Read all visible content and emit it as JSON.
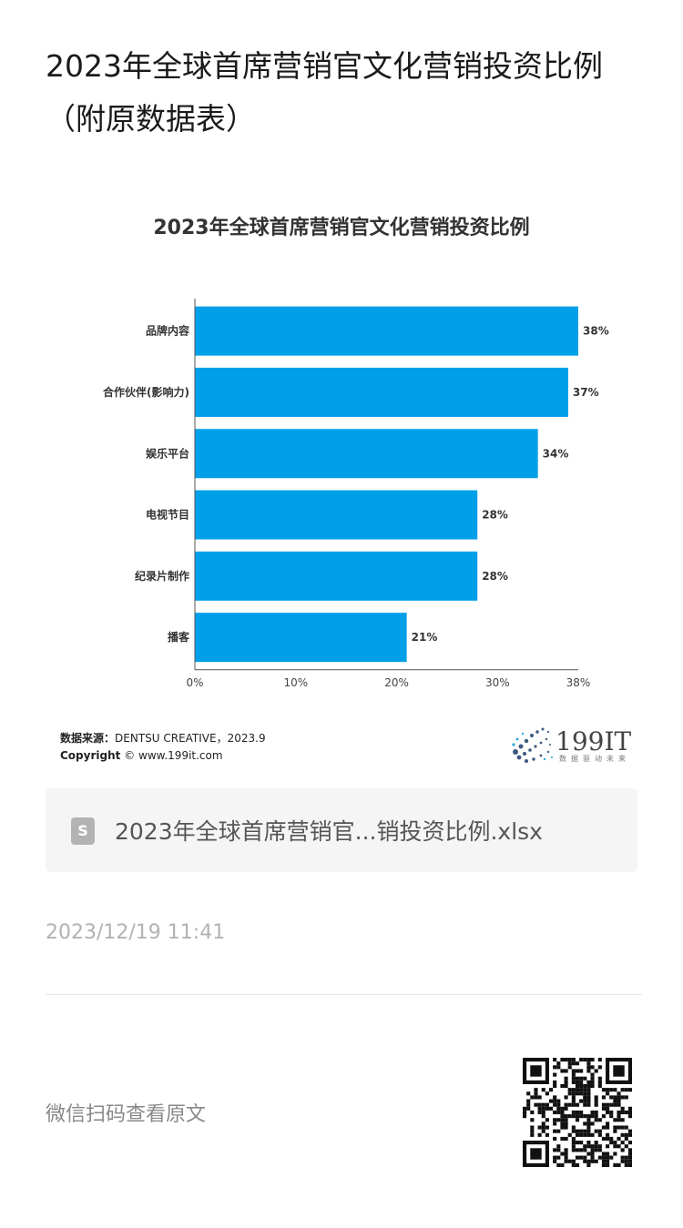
{
  "article": {
    "title": "2023年全球首席营销官文化营销投资比例（附原数据表）"
  },
  "chart_data": {
    "type": "bar",
    "orientation": "horizontal",
    "title": "2023年全球首席营销官文化营销投资比例",
    "categories": [
      "品牌内容",
      "合作伙伴(影响力)",
      "娱乐平台",
      "电视节目",
      "纪录片制作",
      "播客"
    ],
    "values": [
      38,
      37,
      34,
      28,
      28,
      21
    ],
    "value_labels": [
      "38%",
      "37%",
      "34%",
      "28%",
      "28%",
      "21%"
    ],
    "x_ticks": [
      "0%",
      "10%",
      "20%",
      "30%",
      "38%"
    ],
    "x_tick_values": [
      0,
      10,
      20,
      30,
      38
    ],
    "xlim": [
      0,
      38
    ],
    "bar_color": "#00a0e9",
    "grid": false,
    "legend": "none"
  },
  "chart_footer": {
    "source_label": "数据来源：",
    "source_value": "DENTSU CREATIVE，2023.9",
    "copyright_label": "Copyright",
    "copyright_value": "© www.199it.com"
  },
  "logo": {
    "text": "199IT",
    "slogan": "数据驱动未来"
  },
  "attachment": {
    "icon": "spreadsheet-file-icon",
    "icon_letter": "S",
    "name": "2023年全球首席营销官...销投资比例.xlsx"
  },
  "timestamp": "2023/12/19 11:41",
  "footer": {
    "scan_text": "微信扫码查看原文",
    "qr_icon": "qr-code-icon"
  }
}
